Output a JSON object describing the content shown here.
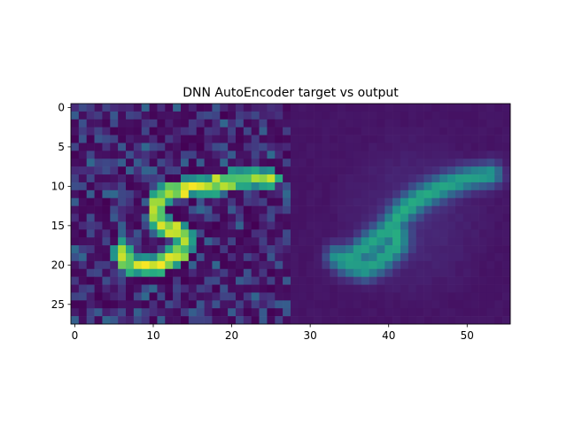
{
  "chart_data": {
    "type": "heatmap",
    "title": "DNN AutoEncoder target vs output",
    "xlabel": "",
    "ylabel": "",
    "colormap": "viridis",
    "grid": false,
    "rows": 28,
    "cols": 56,
    "xlim": [
      -0.5,
      55.5
    ],
    "ylim": [
      27.5,
      -0.5
    ],
    "x_ticks": [
      0,
      10,
      20,
      30,
      40,
      50
    ],
    "y_ticks": [
      0,
      5,
      10,
      15,
      20,
      25
    ],
    "panels": [
      {
        "label": "target",
        "col_range": [
          0,
          27
        ],
        "content": "noisy handwritten digit 5"
      },
      {
        "label": "output",
        "col_range": [
          28,
          55
        ],
        "content": "reconstructed blurry digit 5"
      }
    ]
  }
}
